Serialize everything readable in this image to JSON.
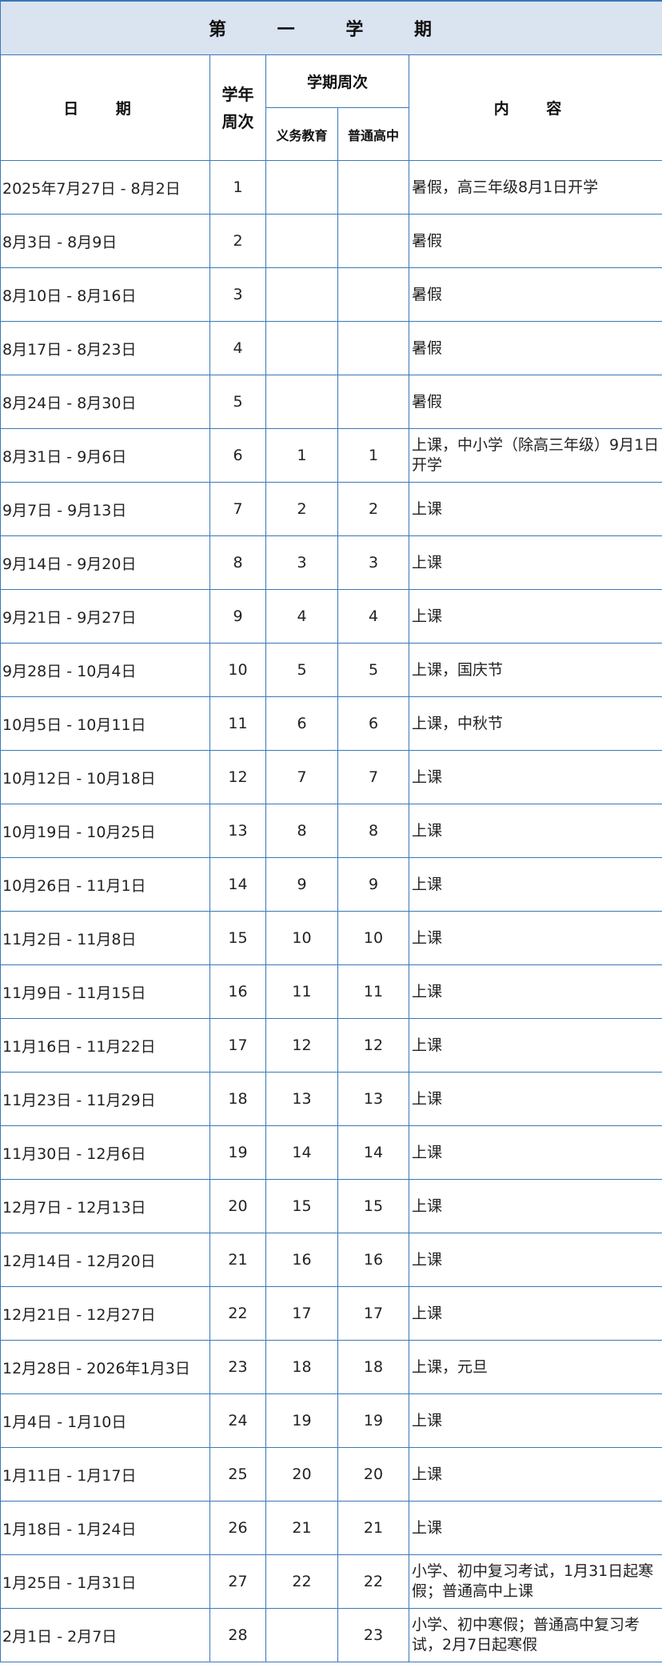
{
  "title": "第 一 学 期",
  "headers": {
    "date": "日 期",
    "year_week": "学年周次",
    "term_week": "学期周次",
    "compulsory": "义务教育",
    "high_school": "普通高中",
    "content": "内 容"
  },
  "rows": [
    {
      "date": "2025年7月27日 - 8月2日",
      "yw": "1",
      "cw": "",
      "hw": "",
      "content": "暑假，高三年级8月1日开学"
    },
    {
      "date": "8月3日 - 8月9日",
      "yw": "2",
      "cw": "",
      "hw": "",
      "content": "暑假"
    },
    {
      "date": "8月10日 - 8月16日",
      "yw": "3",
      "cw": "",
      "hw": "",
      "content": "暑假"
    },
    {
      "date": "8月17日 - 8月23日",
      "yw": "4",
      "cw": "",
      "hw": "",
      "content": "暑假"
    },
    {
      "date": "8月24日 - 8月30日",
      "yw": "5",
      "cw": "",
      "hw": "",
      "content": "暑假"
    },
    {
      "date": "8月31日 - 9月6日",
      "yw": "6",
      "cw": "1",
      "hw": "1",
      "content": "上课，中小学（除高三年级）9月1日开学"
    },
    {
      "date": "9月7日 - 9月13日",
      "yw": "7",
      "cw": "2",
      "hw": "2",
      "content": "上课"
    },
    {
      "date": "9月14日 - 9月20日",
      "yw": "8",
      "cw": "3",
      "hw": "3",
      "content": "上课"
    },
    {
      "date": "9月21日 - 9月27日",
      "yw": "9",
      "cw": "4",
      "hw": "4",
      "content": "上课"
    },
    {
      "date": "9月28日 - 10月4日",
      "yw": "10",
      "cw": "5",
      "hw": "5",
      "content": "上课，国庆节"
    },
    {
      "date": "10月5日 - 10月11日",
      "yw": "11",
      "cw": "6",
      "hw": "6",
      "content": "上课，中秋节"
    },
    {
      "date": "10月12日 - 10月18日",
      "yw": "12",
      "cw": "7",
      "hw": "7",
      "content": "上课"
    },
    {
      "date": "10月19日 - 10月25日",
      "yw": "13",
      "cw": "8",
      "hw": "8",
      "content": "上课"
    },
    {
      "date": "10月26日 - 11月1日",
      "yw": "14",
      "cw": "9",
      "hw": "9",
      "content": "上课"
    },
    {
      "date": "11月2日 - 11月8日",
      "yw": "15",
      "cw": "10",
      "hw": "10",
      "content": "上课"
    },
    {
      "date": "11月9日 - 11月15日",
      "yw": "16",
      "cw": "11",
      "hw": "11",
      "content": "上课"
    },
    {
      "date": "11月16日 - 11月22日",
      "yw": "17",
      "cw": "12",
      "hw": "12",
      "content": "上课"
    },
    {
      "date": "11月23日 - 11月29日",
      "yw": "18",
      "cw": "13",
      "hw": "13",
      "content": "上课"
    },
    {
      "date": "11月30日 - 12月6日",
      "yw": "19",
      "cw": "14",
      "hw": "14",
      "content": "上课"
    },
    {
      "date": "12月7日 - 12月13日",
      "yw": "20",
      "cw": "15",
      "hw": "15",
      "content": "上课"
    },
    {
      "date": "12月14日 - 12月20日",
      "yw": "21",
      "cw": "16",
      "hw": "16",
      "content": "上课"
    },
    {
      "date": "12月21日 - 12月27日",
      "yw": "22",
      "cw": "17",
      "hw": "17",
      "content": "上课"
    },
    {
      "date": "12月28日 - 2026年1月3日",
      "yw": "23",
      "cw": "18",
      "hw": "18",
      "content": "上课，元旦"
    },
    {
      "date": "1月4日 - 1月10日",
      "yw": "24",
      "cw": "19",
      "hw": "19",
      "content": "上课"
    },
    {
      "date": "1月11日 - 1月17日",
      "yw": "25",
      "cw": "20",
      "hw": "20",
      "content": "上课"
    },
    {
      "date": "1月18日 - 1月24日",
      "yw": "26",
      "cw": "21",
      "hw": "21",
      "content": "上课"
    },
    {
      "date": "1月25日 - 1月31日",
      "yw": "27",
      "cw": "22",
      "hw": "22",
      "content": "小学、初中复习考试，1月31日起寒假；普通高中上课"
    },
    {
      "date": "2月1日 - 2月7日",
      "yw": "28",
      "cw": "",
      "hw": "23",
      "content": "小学、初中寒假；普通高中复习考试，2月7日起寒假"
    }
  ]
}
